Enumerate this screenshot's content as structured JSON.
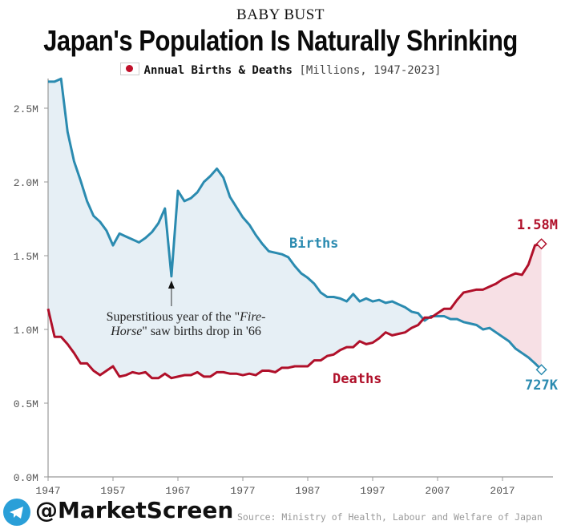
{
  "header": {
    "kicker": "BABY BUST",
    "title": "Japan's Population Is Naturally Shrinking",
    "subtitle_bold": "Annual Births & Deaths",
    "subtitle_light": "[Millions, 1947-2023]",
    "flag_icon": "japan-flag-icon"
  },
  "footer": {
    "handle": "@MarketScreen",
    "source": "Source: Ministry of Health, Labour and Welfare of Japan"
  },
  "colors": {
    "births": "#2b8bb0",
    "deaths": "#b0102a",
    "births_fill": "#e6eff5",
    "deaths_fill": "#f7e0e5"
  },
  "chart_data": {
    "type": "line",
    "title": "Japan's Population Is Naturally Shrinking",
    "subtitle": "Annual Births & Deaths [Millions, 1947-2023]",
    "xlabel": "",
    "ylabel": "",
    "ylim": [
      0,
      2.75
    ],
    "xlim": [
      1947,
      2023
    ],
    "yticks": [
      0,
      0.5,
      1.0,
      1.5,
      2.0,
      2.5
    ],
    "ytick_labels": [
      "0.0M",
      "0.5M",
      "1.0M",
      "1.5M",
      "2.0M",
      "2.5M"
    ],
    "xticks": [
      1947,
      1957,
      1967,
      1977,
      1987,
      1997,
      2007,
      2017
    ],
    "xtick_labels": [
      "1947",
      "1957",
      "1967",
      "1977",
      "1987",
      "1997",
      "2007",
      "2017"
    ],
    "grid": false,
    "x_start": 1947,
    "series": [
      {
        "name": "Births",
        "label": "Births",
        "end_label": "727K",
        "values": [
          2.68,
          2.68,
          2.7,
          2.34,
          2.14,
          2.01,
          1.87,
          1.77,
          1.73,
          1.67,
          1.57,
          1.65,
          1.63,
          1.61,
          1.59,
          1.62,
          1.66,
          1.72,
          1.82,
          1.36,
          1.94,
          1.87,
          1.89,
          1.93,
          2.0,
          2.04,
          2.09,
          2.03,
          1.9,
          1.83,
          1.76,
          1.71,
          1.64,
          1.58,
          1.53,
          1.52,
          1.51,
          1.49,
          1.43,
          1.38,
          1.35,
          1.31,
          1.25,
          1.22,
          1.22,
          1.21,
          1.19,
          1.24,
          1.19,
          1.21,
          1.19,
          1.2,
          1.18,
          1.19,
          1.17,
          1.15,
          1.12,
          1.11,
          1.06,
          1.09,
          1.09,
          1.09,
          1.07,
          1.07,
          1.05,
          1.04,
          1.03,
          1.0,
          1.01,
          0.98,
          0.95,
          0.92,
          0.87,
          0.84,
          0.81,
          0.77,
          0.727
        ]
      },
      {
        "name": "Deaths",
        "label": "Deaths",
        "end_label": "1.58M",
        "values": [
          1.14,
          0.95,
          0.95,
          0.9,
          0.84,
          0.77,
          0.77,
          0.72,
          0.69,
          0.72,
          0.75,
          0.68,
          0.69,
          0.71,
          0.7,
          0.71,
          0.67,
          0.67,
          0.7,
          0.67,
          0.68,
          0.69,
          0.69,
          0.71,
          0.68,
          0.68,
          0.71,
          0.71,
          0.7,
          0.7,
          0.69,
          0.7,
          0.69,
          0.72,
          0.72,
          0.71,
          0.74,
          0.74,
          0.75,
          0.75,
          0.75,
          0.79,
          0.79,
          0.82,
          0.83,
          0.86,
          0.88,
          0.88,
          0.92,
          0.9,
          0.91,
          0.94,
          0.98,
          0.96,
          0.97,
          0.98,
          1.01,
          1.03,
          1.08,
          1.08,
          1.11,
          1.14,
          1.14,
          1.2,
          1.25,
          1.26,
          1.27,
          1.27,
          1.29,
          1.31,
          1.34,
          1.36,
          1.38,
          1.37,
          1.44,
          1.57,
          1.58
        ]
      }
    ],
    "annotations": [
      {
        "year": 1966,
        "text_line1": "Superstitious year of the \"",
        "text_italic1": "Fire-",
        "text_italic2": "Horse",
        "text_line2": "\" saw births drop in '66"
      }
    ]
  }
}
